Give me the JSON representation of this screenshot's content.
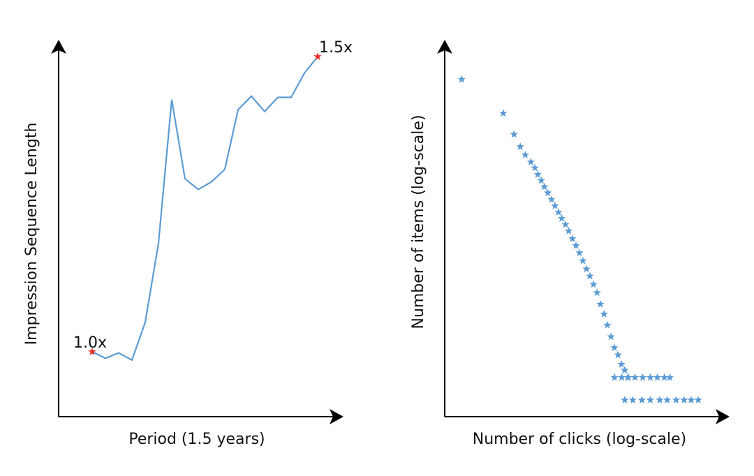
{
  "chart_data": [
    {
      "type": "line",
      "x_label": "Period (1.5 years)",
      "y_label": "Impression Sequence Length",
      "categories": [
        null,
        null,
        null,
        null,
        null,
        null,
        null,
        null,
        null,
        null,
        null,
        null,
        null,
        null,
        null,
        null,
        null,
        null
      ],
      "values": [
        1.0,
        0.989,
        0.998,
        0.986,
        1.05,
        1.184,
        1.427,
        1.293,
        1.275,
        1.288,
        1.309,
        1.41,
        1.433,
        1.407,
        1.431,
        1.431,
        1.472,
        1.5
      ],
      "color": "#5b9bd5",
      "ylim": [
        0.89,
        1.525
      ],
      "annotations": [
        {
          "label": "1.0x",
          "value": 1.0,
          "color": "#e8312a"
        },
        {
          "label": "1.5x",
          "value": 1.5,
          "color": "#e8312a"
        }
      ]
    },
    {
      "type": "scatter",
      "x_label": "Number of clicks (log-scale)",
      "y_label": "Number of items (log-scale)",
      "marker": "star",
      "color": "#5b9bd5",
      "xscale": "log",
      "yscale": "log",
      "xlim": [
        1,
        100000
      ],
      "ylim": [
        0.6,
        60000
      ],
      "x": [
        2,
        11,
        17,
        22,
        27,
        34,
        40,
        45,
        52,
        59,
        68,
        79,
        91,
        105,
        120,
        140,
        160,
        186,
        215,
        248,
        285,
        330,
        380,
        440,
        510,
        585,
        680,
        778,
        900,
        1035,
        1200,
        1380,
        1580,
        1830,
        1040,
        1400,
        1800,
        2400,
        3300,
        4500,
        6000,
        8000,
        10000,
        1580,
        2200,
        3200,
        4500,
        6600,
        9000,
        13000,
        18000,
        24000,
        32000
      ],
      "values": [
        19000,
        6700,
        3500,
        2400,
        1860,
        1500,
        1250,
        1020,
        850,
        700,
        580,
        475,
        390,
        320,
        265,
        220,
        180,
        142,
        115,
        92,
        72,
        56,
        45,
        35,
        27,
        19,
        14,
        10,
        7,
        5,
        4,
        3,
        2.5,
        2,
        2,
        2,
        2,
        2,
        2,
        2,
        2,
        2,
        2,
        1,
        1,
        1,
        1,
        1,
        1,
        1,
        1,
        1,
        1
      ]
    }
  ]
}
